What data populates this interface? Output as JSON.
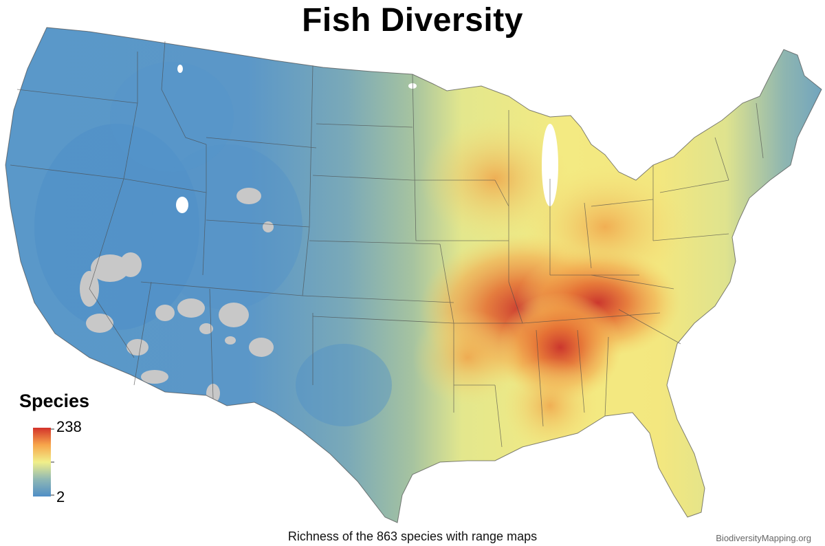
{
  "title": "Fish Diversity",
  "caption": "Richness of the 863 species with range maps",
  "credit": "BiodiversityMapping.org",
  "legend": {
    "title": "Species",
    "max_label": "238",
    "min_label": "2",
    "colors": [
      "#4f8ec6",
      "#8fb8b4",
      "#f1ef8a",
      "#f7a64b",
      "#d3322a"
    ]
  },
  "colors": {
    "low": "#5a98c9",
    "low_mid": "#86b3ad",
    "mid": "#eeed88",
    "high_mid": "#f2b352",
    "high": "#e26a30",
    "peak": "#c9302b",
    "no_data": "#c8c8c8",
    "borders": "#4a4a4a"
  }
}
